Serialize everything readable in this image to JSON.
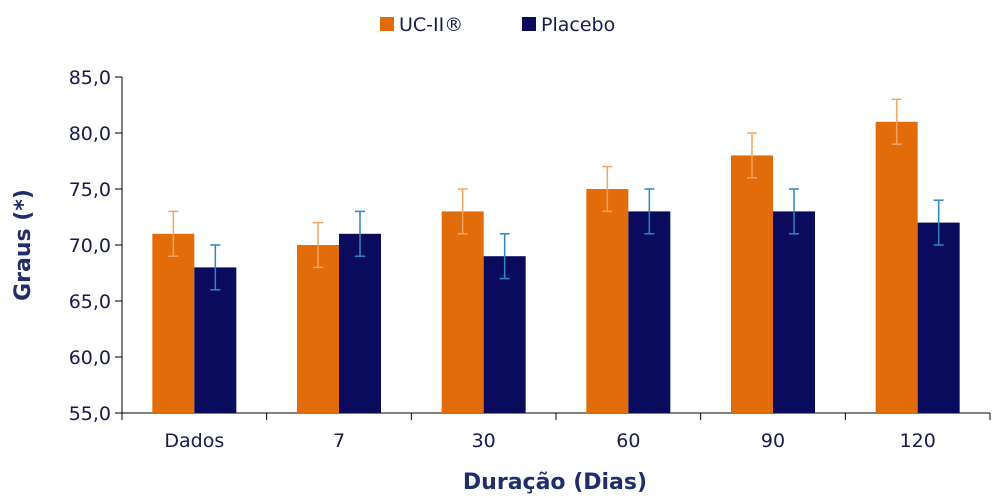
{
  "chart_data": {
    "type": "bar",
    "categories": [
      "Dados",
      "7",
      "30",
      "60",
      "90",
      "120"
    ],
    "series": [
      {
        "name": "UC-II®",
        "color": "#E36C0A",
        "error_color": "#F4A460",
        "values": [
          71.0,
          70.0,
          73.0,
          75.0,
          78.0,
          81.0
        ],
        "errors": [
          2.0,
          2.0,
          2.0,
          2.0,
          2.0,
          2.0
        ]
      },
      {
        "name": "Placebo",
        "color": "#0B0B5E",
        "error_color": "#2E86C1",
        "values": [
          68.0,
          71.0,
          69.0,
          73.0,
          73.0,
          72.0
        ],
        "errors": [
          2.0,
          2.0,
          2.0,
          2.0,
          2.0,
          2.0
        ]
      }
    ],
    "xlabel": "Duração (Dias)",
    "ylabel": "Graus (*)",
    "ylim": [
      55.0,
      85.0
    ],
    "yticks": [
      "55,0",
      "60,0",
      "65,0",
      "70,0",
      "75,0",
      "80,0",
      "85,0"
    ],
    "grid": false,
    "legend": "top-center"
  }
}
